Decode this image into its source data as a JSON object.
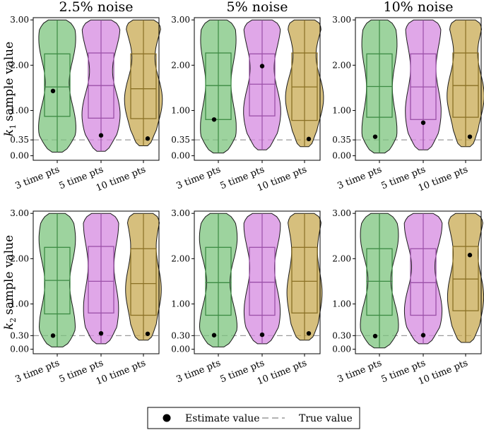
{
  "colors": {
    "green": "#7cc47e",
    "violet": "#d68ae0",
    "gold": "#c8aa52",
    "green_line": "#3c8a43",
    "violet_line": "#9b50a8",
    "gold_line": "#8a7025",
    "estimate": "#000000",
    "true_line": "#9a9a9a"
  },
  "legend": {
    "estimate_label": "Estimate value",
    "true_label": "True value",
    "location": "bottom-center"
  },
  "chart_data": [
    {
      "type": "violin-box",
      "row": 0,
      "col": 0,
      "title": "2.5% noise",
      "ylabel": "k1 sample value",
      "ylabel_symbol": "k",
      "ylabel_sub": "1",
      "ylabel_rest": "sample value",
      "ylim": [
        -0.1,
        3.05
      ],
      "yticks": [
        "0.00",
        "0.35",
        "1.00",
        "2.00",
        "3.00"
      ],
      "ytick_values": [
        0,
        0.35,
        1,
        2,
        3
      ],
      "true_value": 0.35,
      "categories": [
        "3 time pts",
        "5 time pts",
        "10 time pts"
      ],
      "boxes": [
        {
          "min": 0.08,
          "q1": 0.87,
          "median": 1.52,
          "q3": 2.25,
          "max": 3.0,
          "estimate": 1.43
        },
        {
          "min": 0.1,
          "q1": 0.83,
          "median": 1.55,
          "q3": 2.27,
          "max": 3.0,
          "estimate": 0.45
        },
        {
          "min": 0.22,
          "q1": 0.82,
          "median": 1.48,
          "q3": 2.25,
          "max": 3.0,
          "estimate": 0.38
        }
      ]
    },
    {
      "type": "violin-box",
      "row": 0,
      "col": 1,
      "title": "5% noise",
      "ylim": [
        -0.1,
        3.05
      ],
      "yticks": [
        "0.00",
        "0.35",
        "1.00",
        "2.00",
        "3.00"
      ],
      "ytick_values": [
        0,
        0.35,
        1,
        2,
        3
      ],
      "true_value": 0.35,
      "categories": [
        "3 time pts",
        "5 time pts",
        "10 time pts"
      ],
      "boxes": [
        {
          "min": 0.06,
          "q1": 0.8,
          "median": 1.55,
          "q3": 2.27,
          "max": 3.0,
          "estimate": 0.8
        },
        {
          "min": 0.13,
          "q1": 0.88,
          "median": 1.58,
          "q3": 2.25,
          "max": 3.0,
          "estimate": 1.98
        },
        {
          "min": 0.2,
          "q1": 0.78,
          "median": 1.52,
          "q3": 2.27,
          "max": 3.0,
          "estimate": 0.37
        }
      ]
    },
    {
      "type": "violin-box",
      "row": 0,
      "col": 2,
      "title": "10% noise",
      "ylim": [
        -0.1,
        3.05
      ],
      "yticks": [
        "0.00",
        "0.35",
        "1.00",
        "2.00",
        "3.00"
      ],
      "ytick_values": [
        0,
        0.35,
        1,
        2,
        3
      ],
      "true_value": 0.35,
      "categories": [
        "3 time pts",
        "5 time pts",
        "10 time pts"
      ],
      "boxes": [
        {
          "min": 0.06,
          "q1": 0.85,
          "median": 1.53,
          "q3": 2.25,
          "max": 3.0,
          "estimate": 0.42
        },
        {
          "min": 0.13,
          "q1": 0.8,
          "median": 1.52,
          "q3": 2.25,
          "max": 3.0,
          "estimate": 0.73
        },
        {
          "min": 0.2,
          "q1": 0.85,
          "median": 1.55,
          "q3": 2.27,
          "max": 3.0,
          "estimate": 0.42
        }
      ]
    },
    {
      "type": "violin-box",
      "row": 1,
      "col": 0,
      "ylabel": "k2 sample value",
      "ylabel_symbol": "k",
      "ylabel_sub": "2",
      "ylabel_rest": "sample value",
      "ylim": [
        -0.1,
        3.05
      ],
      "yticks": [
        "0.00",
        "0.30",
        "1.00",
        "2.00",
        "3.00"
      ],
      "ytick_values": [
        0,
        0.3,
        1,
        2,
        3
      ],
      "true_value": 0.3,
      "categories": [
        "3 time pts",
        "5 time pts",
        "10 time pts"
      ],
      "boxes": [
        {
          "min": 0.05,
          "q1": 0.78,
          "median": 1.52,
          "q3": 2.25,
          "max": 3.0,
          "estimate": 0.3
        },
        {
          "min": 0.12,
          "q1": 0.8,
          "median": 1.5,
          "q3": 2.27,
          "max": 3.0,
          "estimate": 0.35
        },
        {
          "min": 0.2,
          "q1": 0.75,
          "median": 1.45,
          "q3": 2.22,
          "max": 3.0,
          "estimate": 0.34
        }
      ]
    },
    {
      "type": "violin-box",
      "row": 1,
      "col": 1,
      "ylim": [
        -0.1,
        3.05
      ],
      "yticks": [
        "0.00",
        "0.30",
        "1.00",
        "2.00",
        "3.00"
      ],
      "ytick_values": [
        0,
        0.3,
        1,
        2,
        3
      ],
      "true_value": 0.3,
      "categories": [
        "3 time pts",
        "5 time pts",
        "10 time pts"
      ],
      "boxes": [
        {
          "min": 0.05,
          "q1": 0.75,
          "median": 1.47,
          "q3": 2.25,
          "max": 3.0,
          "estimate": 0.31
        },
        {
          "min": 0.12,
          "q1": 0.75,
          "median": 1.48,
          "q3": 2.25,
          "max": 3.0,
          "estimate": 0.32
        },
        {
          "min": 0.2,
          "q1": 0.8,
          "median": 1.5,
          "q3": 2.25,
          "max": 3.0,
          "estimate": 0.35
        }
      ]
    },
    {
      "type": "violin-box",
      "row": 1,
      "col": 2,
      "ylim": [
        -0.1,
        3.05
      ],
      "yticks": [
        "0.00",
        "0.30",
        "1.00",
        "2.00",
        "3.00"
      ],
      "ytick_values": [
        0,
        0.3,
        1,
        2,
        3
      ],
      "true_value": 0.3,
      "categories": [
        "3 time pts",
        "5 time pts",
        "10 time pts"
      ],
      "boxes": [
        {
          "min": 0.03,
          "q1": 0.75,
          "median": 1.5,
          "q3": 2.22,
          "max": 3.0,
          "estimate": 0.29
        },
        {
          "min": 0.12,
          "q1": 0.75,
          "median": 1.47,
          "q3": 2.22,
          "max": 3.0,
          "estimate": 0.31
        },
        {
          "min": 0.15,
          "q1": 0.85,
          "median": 1.55,
          "q3": 2.27,
          "max": 3.0,
          "estimate": 2.08
        }
      ]
    }
  ]
}
